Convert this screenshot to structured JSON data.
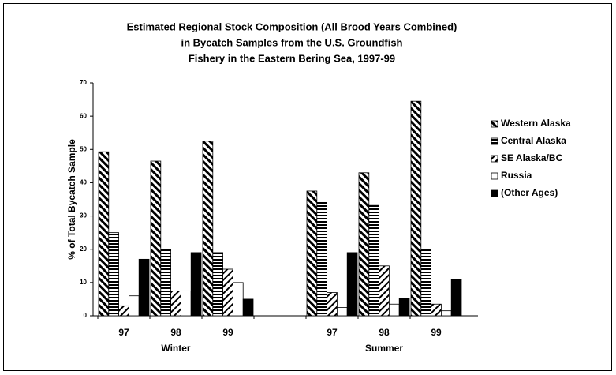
{
  "chart_data": {
    "type": "bar",
    "title": [
      "Estimated Regional Stock Composition (All Brood Years Combined)",
      "in Bycatch Samples from the U.S. Groundfish",
      "Fishery in the Eastern Bering Sea, 1997-99"
    ],
    "y_label": "% of Total Bycatch Sample",
    "categories": [
      "97",
      "98",
      "99",
      null,
      "97",
      "98",
      "99"
    ],
    "groups": [
      "Winter",
      "Summer"
    ],
    "series": [
      {
        "name": "Western Alaska",
        "color": "#000000",
        "pattern": "back-diagonal",
        "values": [
          49.3,
          46.5,
          52.5,
          null,
          37.5,
          43,
          64.5
        ]
      },
      {
        "name": "Central Alaska",
        "color": "#000000",
        "pattern": "horizontal",
        "values": [
          25,
          20,
          19,
          null,
          34.5,
          33.5,
          20
        ]
      },
      {
        "name": "SE Alaska/BC",
        "color": "#000000",
        "pattern": "diagonal",
        "values": [
          3,
          7.5,
          14,
          null,
          7,
          15,
          3.5
        ]
      },
      {
        "name": "Russia",
        "color": "#000000",
        "pattern": "none",
        "values": [
          6,
          7.5,
          10,
          null,
          2.5,
          3.5,
          1.5
        ]
      },
      {
        "name": "(Other Ages)",
        "color": "#000000",
        "pattern": "solid",
        "values": [
          17,
          19,
          5,
          null,
          19,
          5.3,
          11
        ]
      }
    ],
    "ylim": [
      0,
      70
    ],
    "yticks": [
      0,
      10,
      20,
      30,
      40,
      50,
      60,
      70
    ],
    "grid": false,
    "legend": "right"
  }
}
